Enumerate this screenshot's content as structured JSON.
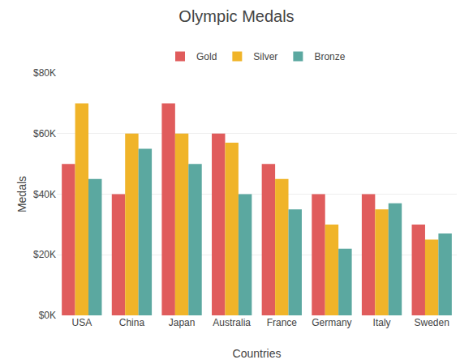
{
  "chart_data": {
    "type": "bar",
    "title": "Olympic Medals",
    "xlabel": "Countries",
    "ylabel": "Medals",
    "categories": [
      "USA",
      "China",
      "Japan",
      "Australia",
      "France",
      "Germany",
      "Italy",
      "Sweden"
    ],
    "series": [
      {
        "name": "Gold",
        "color": "#E05C5C",
        "values": [
          50000,
          40000,
          70000,
          60000,
          50000,
          40000,
          40000,
          30000
        ]
      },
      {
        "name": "Silver",
        "color": "#F0B429",
        "values": [
          70000,
          60000,
          60000,
          57000,
          45000,
          30000,
          35000,
          25000
        ]
      },
      {
        "name": "Bronze",
        "color": "#5BA8A0",
        "values": [
          45000,
          55000,
          50000,
          40000,
          35000,
          22000,
          37000,
          27000
        ]
      }
    ],
    "ylim": [
      0,
      80000
    ],
    "yticks": [
      {
        "value": 0,
        "label": "$0K"
      },
      {
        "value": 20000,
        "label": "$20K"
      },
      {
        "value": 40000,
        "label": "$40K"
      },
      {
        "value": 60000,
        "label": "$60K"
      },
      {
        "value": 80000,
        "label": "$80K"
      }
    ],
    "grid": true,
    "legend": "top"
  }
}
